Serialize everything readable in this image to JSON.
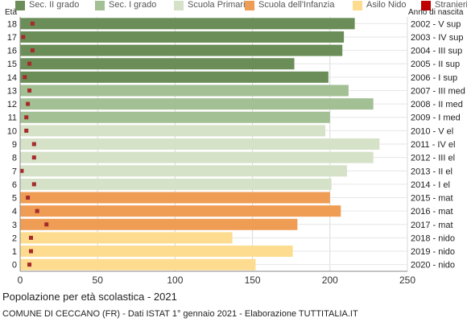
{
  "legend": [
    {
      "label": "Sec. II grado",
      "color": "#6b8e59"
    },
    {
      "label": "Sec. I grado",
      "color": "#a3bf94"
    },
    {
      "label": "Scuola Primaria",
      "color": "#d6e2c8"
    },
    {
      "label": "Scuola dell'Infanzia",
      "color": "#ef9d55"
    },
    {
      "label": "Asilo Nido",
      "color": "#fddc8f"
    },
    {
      "label": "Stranieri",
      "color": "#c00000"
    }
  ],
  "y_axis_label": "Età",
  "right_axis_label": "Anno di nascita",
  "footer": {
    "title": "Popolazione per età scolastica - 2021",
    "source": "COMUNE DI CECCANO (FR) - Dati ISTAT 1° gennaio 2021 - Elaborazione TUTTITALIA.IT"
  },
  "chart_data": {
    "type": "bar",
    "orientation": "horizontal",
    "xlim": [
      0,
      250
    ],
    "x_ticks": [
      0,
      50,
      100,
      150,
      200,
      250
    ],
    "grid": true,
    "rows": [
      {
        "age": "18",
        "birth": "2002 - V sup",
        "total": 216,
        "foreign": 8,
        "group": 0
      },
      {
        "age": "17",
        "birth": "2003 - IV sup",
        "total": 209,
        "foreign": 2,
        "group": 0
      },
      {
        "age": "16",
        "birth": "2004 - III sup",
        "total": 208,
        "foreign": 8,
        "group": 0
      },
      {
        "age": "15",
        "birth": "2005 - II sup",
        "total": 177,
        "foreign": 6,
        "group": 0
      },
      {
        "age": "14",
        "birth": "2006 - I sup",
        "total": 199,
        "foreign": 3,
        "group": 0
      },
      {
        "age": "13",
        "birth": "2007 - III med",
        "total": 212,
        "foreign": 6,
        "group": 1
      },
      {
        "age": "12",
        "birth": "2008 - II med",
        "total": 228,
        "foreign": 5,
        "group": 1
      },
      {
        "age": "11",
        "birth": "2009 - I med",
        "total": 200,
        "foreign": 4,
        "group": 1
      },
      {
        "age": "10",
        "birth": "2010 - V el",
        "total": 197,
        "foreign": 4,
        "group": 2
      },
      {
        "age": "9",
        "birth": "2011 - IV el",
        "total": 232,
        "foreign": 9,
        "group": 2
      },
      {
        "age": "8",
        "birth": "2012 - III el",
        "total": 228,
        "foreign": 9,
        "group": 2
      },
      {
        "age": "7",
        "birth": "2013 - II el",
        "total": 211,
        "foreign": 1,
        "group": 2
      },
      {
        "age": "6",
        "birth": "2014 - I el",
        "total": 201,
        "foreign": 9,
        "group": 2
      },
      {
        "age": "5",
        "birth": "2015 - mat",
        "total": 200,
        "foreign": 5,
        "group": 3
      },
      {
        "age": "4",
        "birth": "2016 - mat",
        "total": 207,
        "foreign": 11,
        "group": 3
      },
      {
        "age": "3",
        "birth": "2017 - mat",
        "total": 179,
        "foreign": 17,
        "group": 3
      },
      {
        "age": "2",
        "birth": "2018 - nido",
        "total": 137,
        "foreign": 7,
        "group": 4
      },
      {
        "age": "1",
        "birth": "2019 - nido",
        "total": 176,
        "foreign": 7,
        "group": 4
      },
      {
        "age": "0",
        "birth": "2020 - nido",
        "total": 152,
        "foreign": 6,
        "group": 4
      }
    ]
  }
}
